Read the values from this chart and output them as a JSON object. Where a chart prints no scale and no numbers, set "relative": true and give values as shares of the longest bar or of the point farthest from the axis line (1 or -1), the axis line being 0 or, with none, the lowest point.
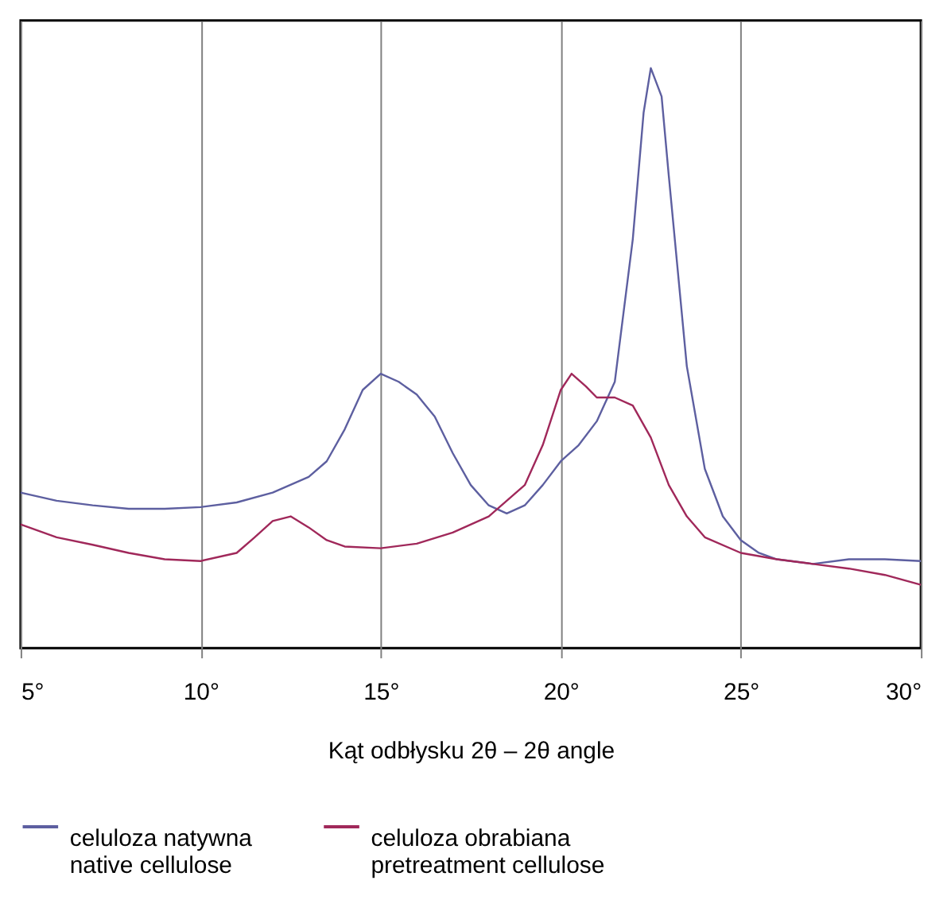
{
  "chart_data": {
    "type": "line",
    "relative": true,
    "xlabel": "Kąt odbłysku 2θ – 2θ angle",
    "xlim": [
      5,
      30
    ],
    "xticks": [
      {
        "value": 5,
        "label": "5°"
      },
      {
        "value": 10,
        "label": "10°"
      },
      {
        "value": 15,
        "label": "15°"
      },
      {
        "value": 20,
        "label": "20°"
      },
      {
        "value": 25,
        "label": "25°"
      },
      {
        "value": 30,
        "label": "30°"
      }
    ],
    "grid": "x",
    "legend": "bottom",
    "tick_labels": "x",
    "line_style": "solid",
    "marker": "none",
    "series": [
      {
        "name": "celuloza natywna\nnative cellulose",
        "color": "#5d5fa0",
        "x": [
          5,
          6,
          7,
          8,
          9,
          10,
          11,
          12,
          13,
          13.5,
          14,
          14.5,
          15,
          15.5,
          16,
          16.5,
          17,
          17.5,
          18,
          18.5,
          19,
          19.5,
          20,
          20.5,
          21,
          21.5,
          22,
          22.3,
          22.5,
          22.8,
          23,
          23.5,
          24,
          24.5,
          25,
          25.5,
          26,
          27,
          28,
          29,
          30
        ],
        "values": [
          0.268,
          0.254,
          0.246,
          0.24,
          0.24,
          0.243,
          0.251,
          0.268,
          0.295,
          0.322,
          0.377,
          0.445,
          0.473,
          0.459,
          0.437,
          0.399,
          0.336,
          0.281,
          0.246,
          0.232,
          0.246,
          0.281,
          0.322,
          0.35,
          0.391,
          0.459,
          0.705,
          0.923,
          1.0,
          0.951,
          0.814,
          0.486,
          0.309,
          0.227,
          0.186,
          0.164,
          0.153,
          0.145,
          0.153,
          0.153,
          0.15
        ]
      },
      {
        "name": "celuloza obrabiana\npretreatment cellulose",
        "color": "#a0285a",
        "x": [
          5,
          6,
          7,
          8,
          9,
          10,
          11,
          11.5,
          12,
          12.5,
          13,
          13.5,
          14,
          15,
          16,
          17,
          18,
          19,
          19.5,
          20,
          20.3,
          20.7,
          21,
          21.5,
          22,
          22.5,
          23,
          23.5,
          24,
          25,
          26,
          27,
          28,
          29,
          30
        ],
        "values": [
          0.213,
          0.191,
          0.178,
          0.164,
          0.153,
          0.15,
          0.164,
          0.191,
          0.219,
          0.227,
          0.208,
          0.186,
          0.175,
          0.172,
          0.18,
          0.199,
          0.227,
          0.281,
          0.35,
          0.445,
          0.473,
          0.451,
          0.432,
          0.432,
          0.418,
          0.363,
          0.281,
          0.227,
          0.191,
          0.164,
          0.153,
          0.145,
          0.137,
          0.126,
          0.109
        ]
      }
    ]
  }
}
